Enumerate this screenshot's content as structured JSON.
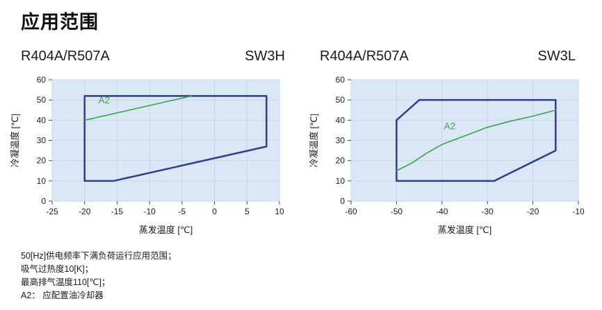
{
  "page": {
    "title": "应用范围"
  },
  "colors": {
    "plot_bg": "#d9e8f4",
    "grid": "#c6d7e5",
    "tick": "#444444",
    "axis_text": "#1a1a1a",
    "envelope": "#323c8e",
    "a2": "#3f9e52"
  },
  "chart_data": [
    {
      "type": "area",
      "refrigerant_label": "R404A/R507A",
      "model_label": "SW3H",
      "xlabel": "蒸发温度 [℃]",
      "ylabel": "冷凝温度 [℃]",
      "xlim": [
        -25,
        10
      ],
      "ylim": [
        0,
        60
      ],
      "xticks": [
        -25,
        -20,
        -15,
        -10,
        -5,
        0,
        5,
        10
      ],
      "yticks": [
        0,
        10,
        20,
        30,
        40,
        50,
        60
      ],
      "grid": true,
      "series": [
        {
          "name": "operating-envelope",
          "kind": "polygon",
          "points": [
            [
              -20,
              52
            ],
            [
              8,
              52
            ],
            [
              8,
              27
            ],
            [
              -15.5,
              10
            ],
            [
              -20,
              10
            ]
          ]
        },
        {
          "name": "a2-limit-line",
          "kind": "line",
          "points": [
            [
              -20,
              40
            ],
            [
              -3.5,
              52
            ]
          ]
        }
      ],
      "annotations": [
        {
          "text": "A2",
          "x": -17,
          "y": 48.3
        }
      ]
    },
    {
      "type": "area",
      "refrigerant_label": "R404A/R507A",
      "model_label": "SW3L",
      "xlabel": "蒸发温度 [℃]",
      "ylabel": "冷凝温度 [℃]",
      "xlim": [
        -60,
        -10
      ],
      "ylim": [
        0,
        60
      ],
      "xticks": [
        -60,
        -50,
        -40,
        -30,
        -20,
        -10
      ],
      "yticks": [
        0,
        10,
        20,
        30,
        40,
        50,
        60
      ],
      "grid": true,
      "series": [
        {
          "name": "operating-envelope",
          "kind": "polygon",
          "points": [
            [
              -50,
              40
            ],
            [
              -45,
              50
            ],
            [
              -15,
              50
            ],
            [
              -15,
              25
            ],
            [
              -28.5,
              10
            ],
            [
              -50,
              10
            ]
          ]
        },
        {
          "name": "a2-limit-line",
          "kind": "line",
          "points": [
            [
              -50,
              15
            ],
            [
              -46.5,
              19
            ],
            [
              -43.5,
              23.5
            ],
            [
              -40,
              28
            ],
            [
              -36.5,
              31
            ],
            [
              -30,
              36.5
            ],
            [
              -25,
              39.5
            ],
            [
              -20,
              42
            ],
            [
              -15,
              45
            ]
          ]
        }
      ],
      "annotations": [
        {
          "text": "A2",
          "x": -38.3,
          "y": 35.5
        }
      ]
    }
  ],
  "notes": [
    "50[Hz]供电频率下满负荷运行应用范围；",
    "吸气过热度10[K]；",
    "最高排气温度110[℃]；",
    "A2： 应配置油冷却器"
  ]
}
